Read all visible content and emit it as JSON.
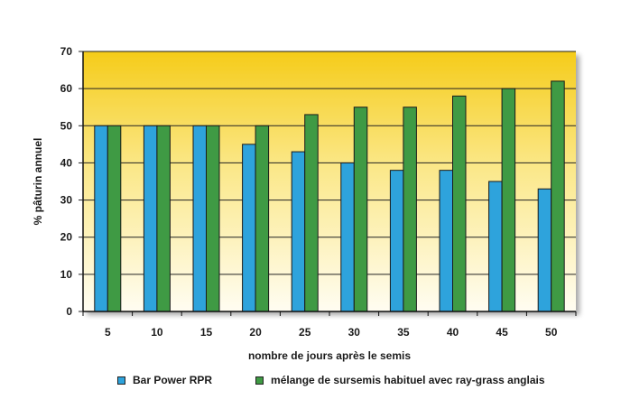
{
  "chart_data": {
    "type": "bar",
    "title": "",
    "xlabel": "nombre de jours après le semis",
    "ylabel": "% pâturin annuel",
    "ylim": [
      0,
      70
    ],
    "yticks": [
      "0",
      "10",
      "20",
      "30",
      "40",
      "50",
      "60",
      "70"
    ],
    "grid": true,
    "legend_position": "bottom",
    "categories": [
      "5",
      "10",
      "15",
      "20",
      "25",
      "30",
      "35",
      "40",
      "45",
      "50"
    ],
    "series": [
      {
        "name": "Bar Power RPR",
        "color": "#2ea3dc",
        "values": [
          50,
          50,
          50,
          45,
          43,
          40,
          38,
          38,
          35,
          33
        ]
      },
      {
        "name": "mélange de sursemis habituel avec ray-grass anglais",
        "color": "#3f9a44",
        "values": [
          50,
          50,
          50,
          50,
          53,
          55,
          55,
          58,
          60,
          62
        ]
      }
    ]
  }
}
